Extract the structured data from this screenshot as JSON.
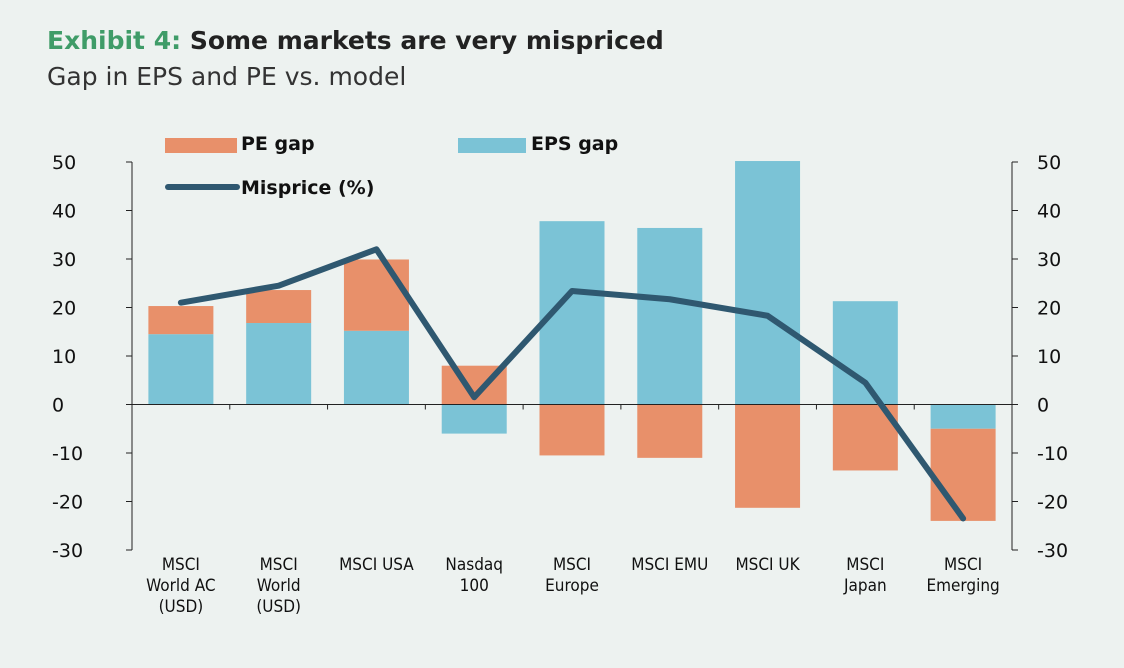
{
  "header": {
    "exhibit_label": "Exhibit 4:",
    "title": "Some markets are very mispriced",
    "subtitle": "Gap in EPS and PE vs. model"
  },
  "chart_data": {
    "type": "bar",
    "stacked": true,
    "categories": [
      [
        "MSCI",
        "World AC",
        "(USD)"
      ],
      [
        "MSCI",
        "World",
        "(USD)"
      ],
      [
        "MSCI USA"
      ],
      [
        "Nasdaq",
        "100"
      ],
      [
        "MSCI",
        "Europe"
      ],
      [
        "MSCI EMU"
      ],
      [
        "MSCI UK"
      ],
      [
        "MSCI",
        "Japan"
      ],
      [
        "MSCI",
        "Emerging"
      ]
    ],
    "series": [
      {
        "name": "EPS gap",
        "type": "bar",
        "color": "#7bc3d6",
        "values": [
          14.5,
          16.8,
          15.2,
          -6,
          37.8,
          36.4,
          50.2,
          21.3,
          -5
        ]
      },
      {
        "name": "PE gap",
        "type": "bar",
        "color": "#e8906a",
        "values": [
          5.8,
          6.8,
          14.7,
          8,
          -10.5,
          -11,
          -21.3,
          -13.6,
          -19
        ]
      },
      {
        "name": "Misprice (%)",
        "type": "line",
        "color": "#2f5870",
        "values": [
          21,
          24.5,
          32,
          1.5,
          23.4,
          21.7,
          18.3,
          4.5,
          -23.5
        ]
      }
    ],
    "yticks": [
      50,
      40,
      30,
      20,
      10,
      0,
      -10,
      -20,
      -30
    ],
    "ylim": [
      -30,
      50
    ],
    "grid": false,
    "legend": "top-left, inside plot"
  }
}
